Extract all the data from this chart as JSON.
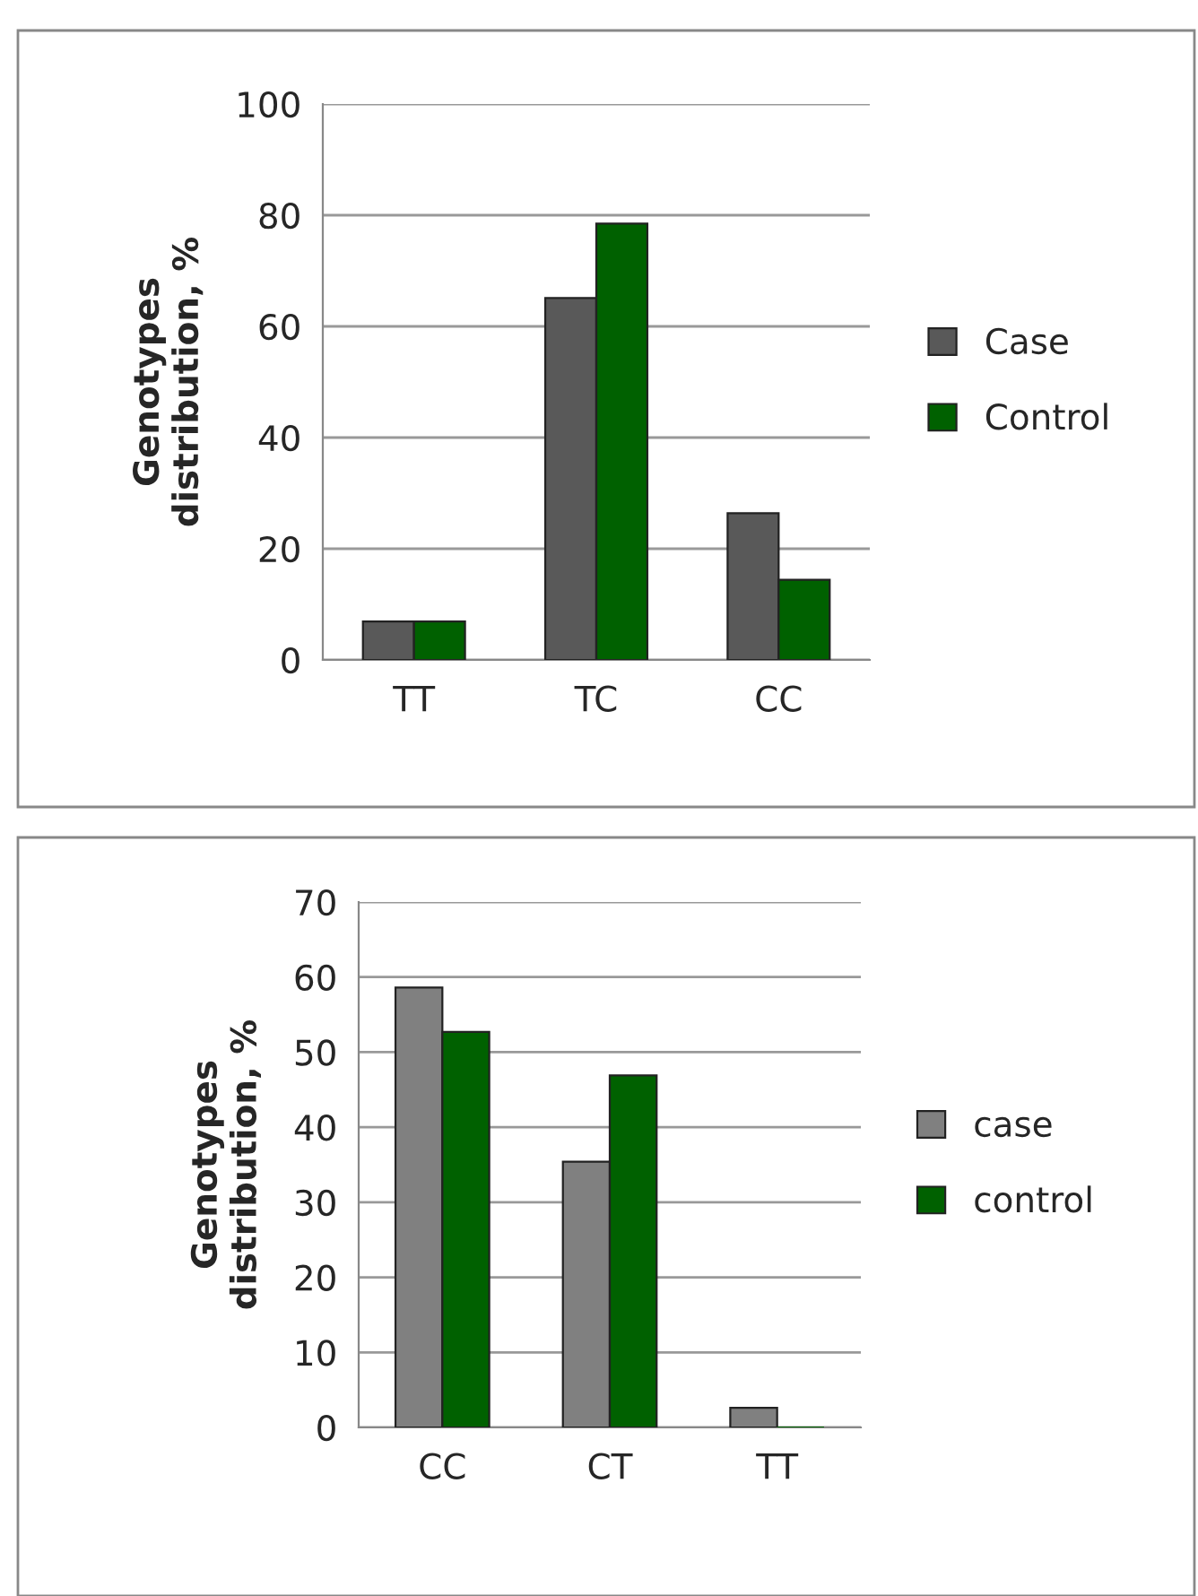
{
  "chart_data": [
    {
      "type": "bar",
      "ylabel": "Genotypes\ndistribution, %",
      "categories": [
        "TT",
        "TC",
        "CC"
      ],
      "series": [
        {
          "name": "Case",
          "color": "#595959",
          "values": [
            6.9,
            65.1,
            26.4
          ]
        },
        {
          "name": "Control",
          "color": "#006100",
          "values": [
            6.9,
            78.5,
            14.4
          ]
        }
      ],
      "ylim": [
        0,
        100
      ],
      "yticks": [
        0,
        20,
        40,
        60,
        80,
        100
      ],
      "grid": "y",
      "legend": "right"
    },
    {
      "type": "bar",
      "ylabel": "Genotypes\ndistribution, %",
      "categories": [
        "CC",
        "CT",
        "TT"
      ],
      "series": [
        {
          "name": "case",
          "color": "#808080",
          "values": [
            58.6,
            35.4,
            2.6
          ]
        },
        {
          "name": "control",
          "color": "#006100",
          "values": [
            52.7,
            46.9,
            0
          ]
        }
      ],
      "ylim": [
        0,
        70
      ],
      "yticks": [
        0,
        10,
        20,
        30,
        40,
        50,
        60,
        70
      ],
      "grid": "y",
      "legend": "right"
    }
  ]
}
